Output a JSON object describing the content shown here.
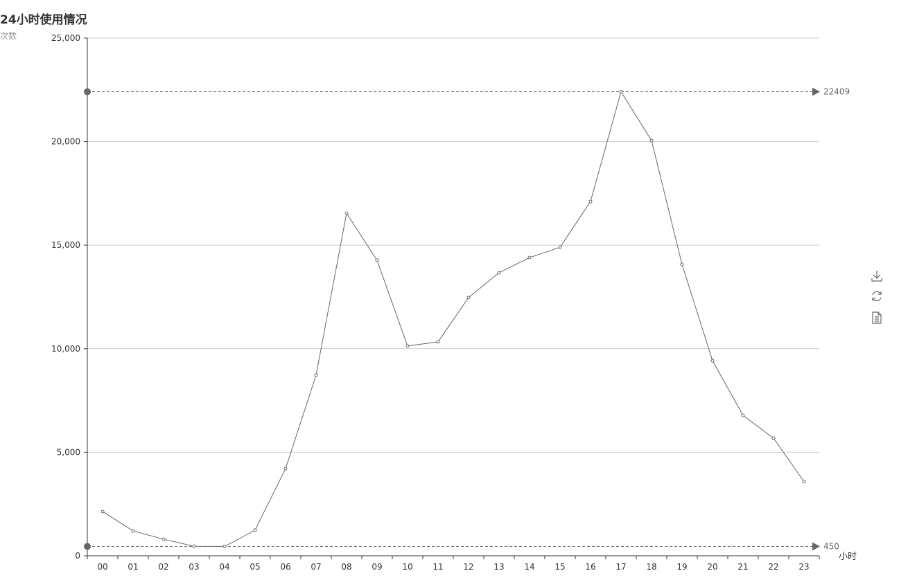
{
  "chart_data": {
    "type": "line",
    "title": "24小时使用情况",
    "xlabel": "小时",
    "ylabel": "次数",
    "categories": [
      "00",
      "01",
      "02",
      "03",
      "04",
      "05",
      "06",
      "07",
      "08",
      "09",
      "10",
      "11",
      "12",
      "13",
      "14",
      "15",
      "16",
      "17",
      "18",
      "19",
      "20",
      "21",
      "22",
      "23"
    ],
    "values": [
      2140,
      1200,
      800,
      460,
      450,
      1240,
      4210,
      8720,
      16540,
      14270,
      10130,
      10330,
      12470,
      13670,
      14400,
      14900,
      17110,
      22409,
      20050,
      14070,
      9420,
      6780,
      5680,
      3580
    ],
    "ylim": [
      0,
      25000
    ],
    "yticks": [
      "0",
      "5,000",
      "10,000",
      "15,000",
      "20,000",
      "25,000"
    ],
    "ytick_values": [
      0,
      5000,
      10000,
      15000,
      20000,
      25000
    ],
    "grid": true,
    "mark_lines": [
      {
        "type": "max",
        "value": 22409,
        "label": "22409"
      },
      {
        "type": "min",
        "value": 450,
        "label": "450"
      }
    ],
    "colors": {
      "line": "#666666",
      "grid": "#cccccc",
      "axis": "#333333",
      "markline": "#666666"
    }
  },
  "toolbox": [
    "download-icon",
    "refresh-icon",
    "data-view-icon"
  ]
}
